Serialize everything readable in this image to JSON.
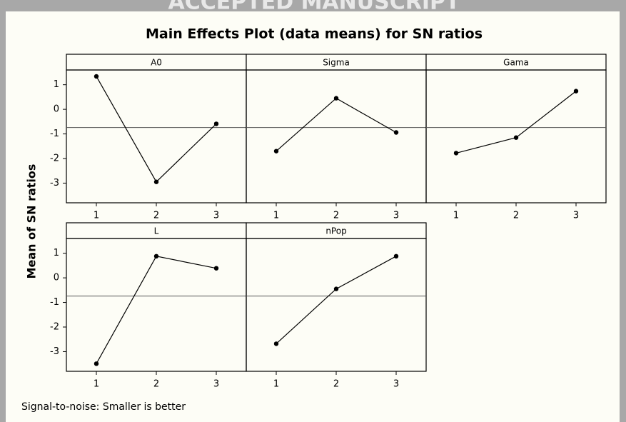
{
  "watermark": "ACCEPTED MANUSCRIPT",
  "chart_data": {
    "type": "line",
    "title": "Main Effects Plot (data means) for SN ratios",
    "ylabel": "Mean of SN ratios",
    "footnote": "Signal-to-noise: Smaller is better",
    "categories": [
      "1",
      "2",
      "3"
    ],
    "ylim": [
      -3.8,
      1.6
    ],
    "yticks": [
      1,
      0,
      -1,
      -2,
      -3
    ],
    "mean_line": -0.74,
    "color": "#000000",
    "mean_line_color": "#555555",
    "series": [
      {
        "name": "A0",
        "values": [
          1.34,
          -2.95,
          -0.59
        ]
      },
      {
        "name": "Sigma",
        "values": [
          -1.7,
          0.45,
          -0.94
        ]
      },
      {
        "name": "Gama",
        "values": [
          -1.78,
          -1.15,
          0.74
        ]
      },
      {
        "name": "L",
        "values": [
          -3.49,
          0.88,
          0.39
        ]
      },
      {
        "name": "nPop",
        "values": [
          -2.68,
          -0.45,
          0.88
        ]
      }
    ]
  }
}
